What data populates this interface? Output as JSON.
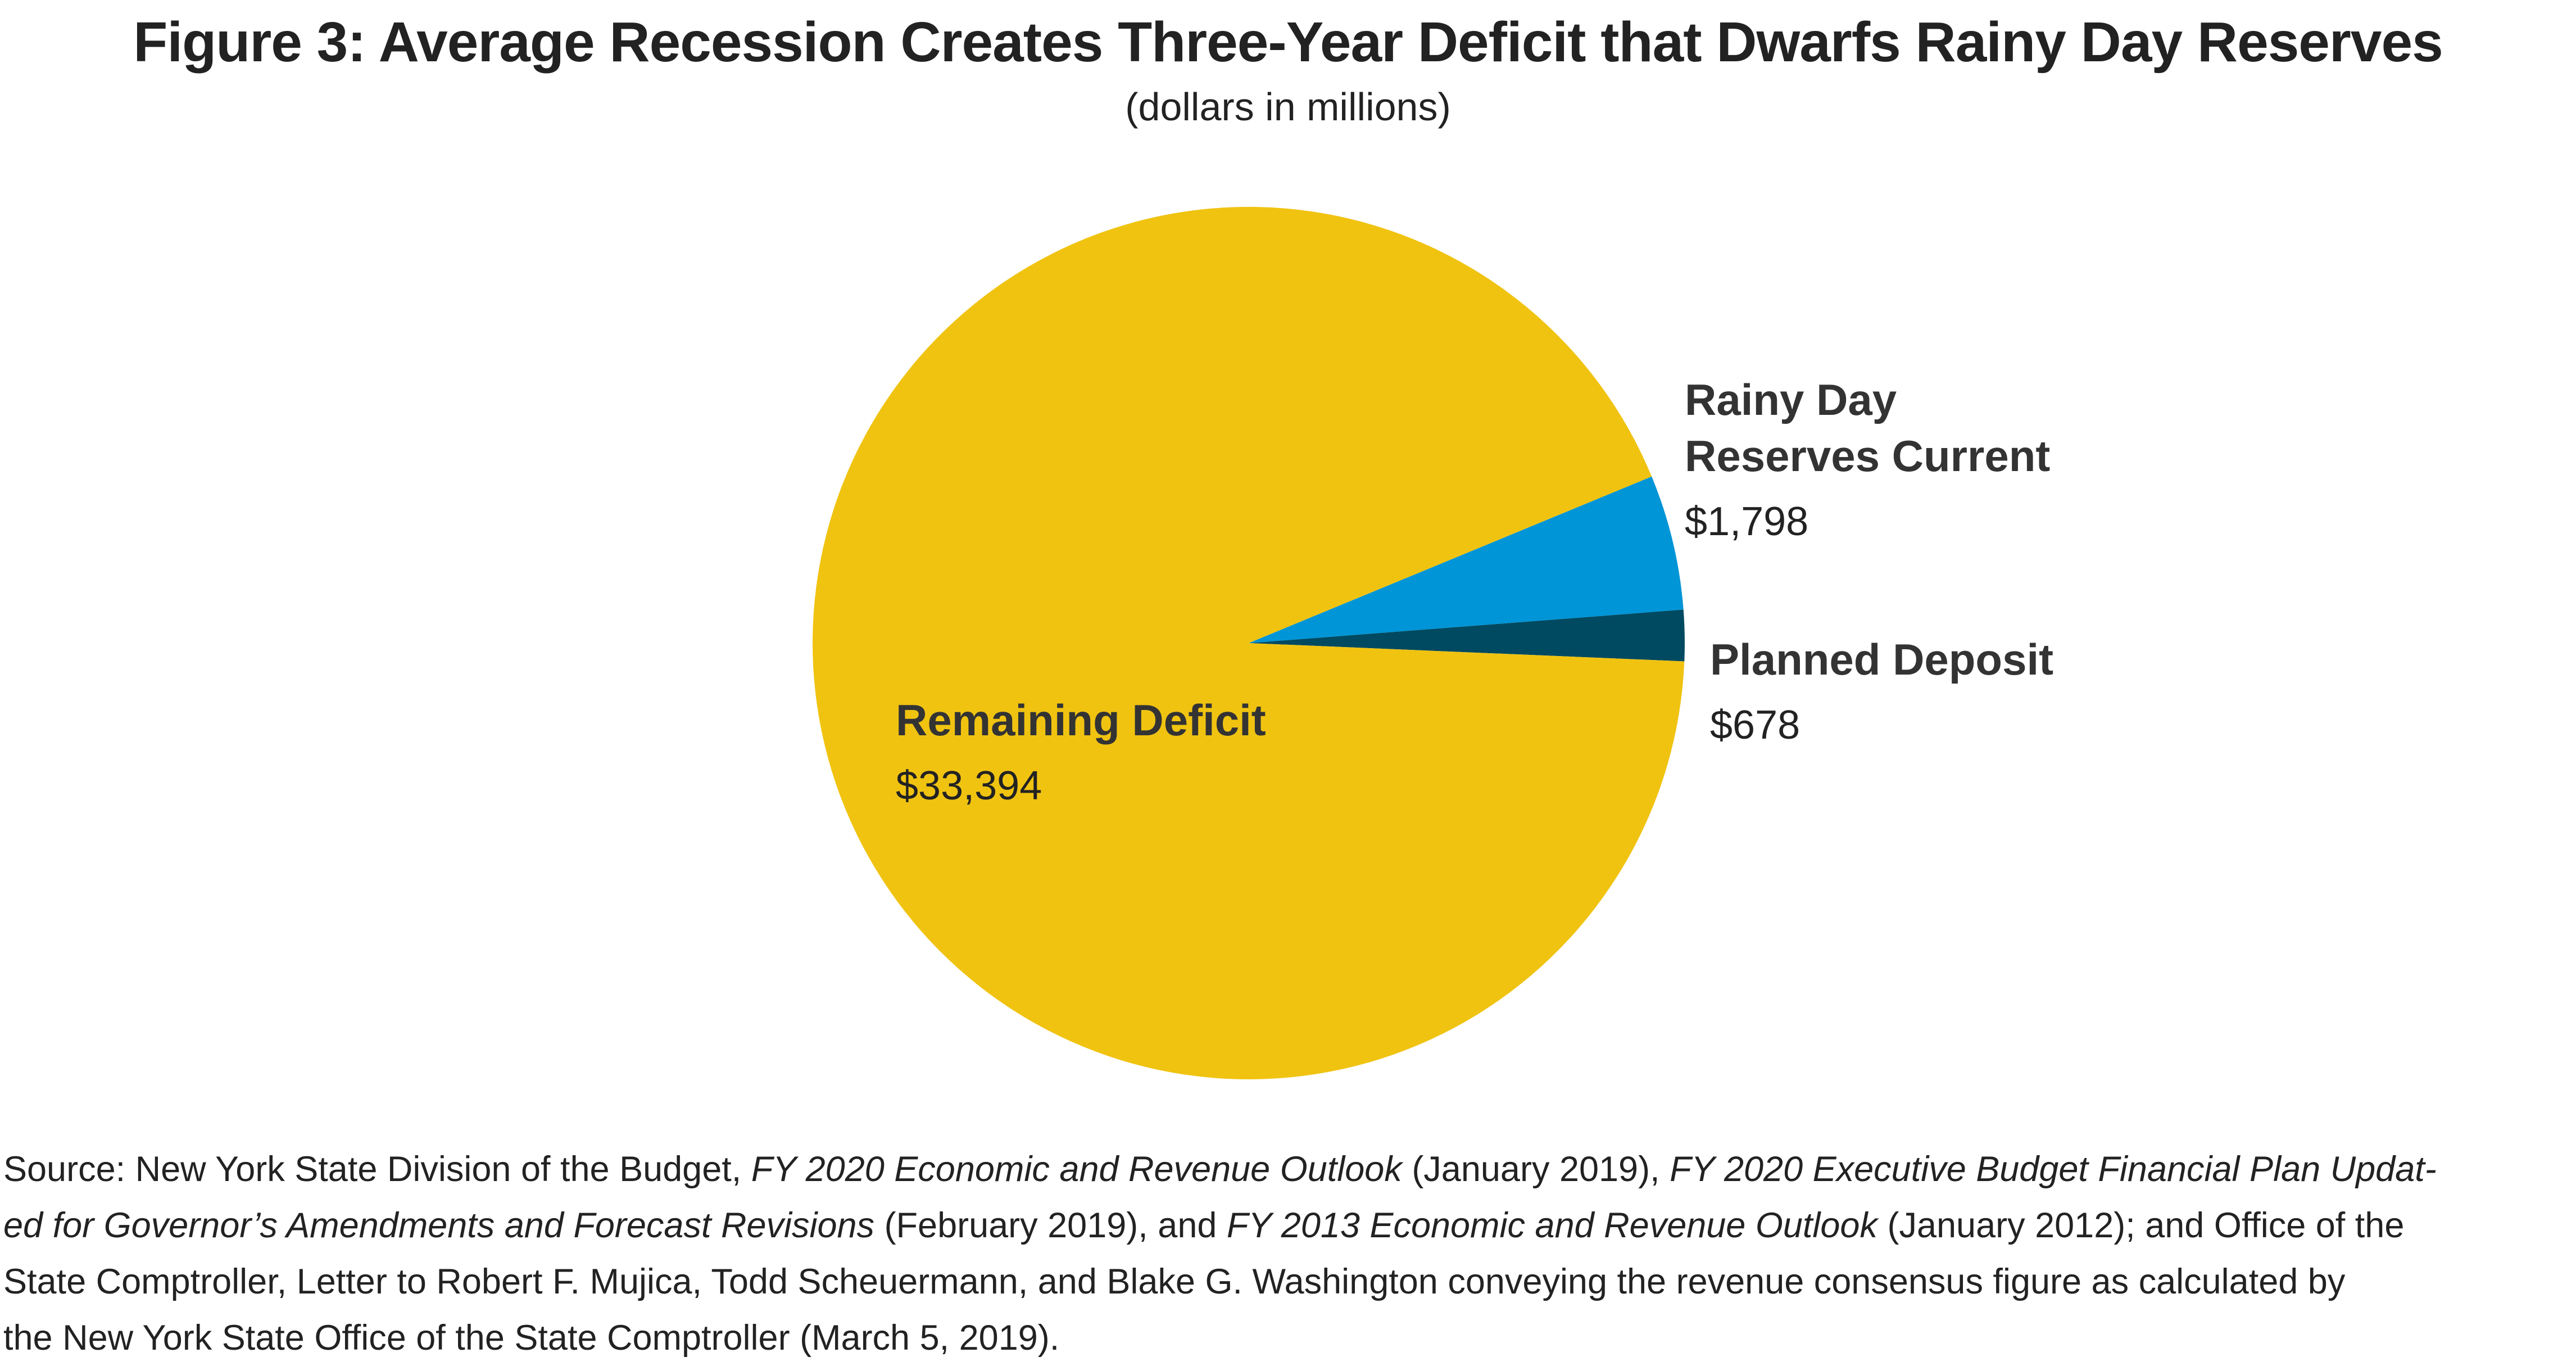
{
  "title": "Figure 3: Average Recession Creates Three-Year Deficit that Dwarfs Rainy Day Reserves",
  "subtitle": "(dollars in millions)",
  "chart_data": {
    "type": "pie",
    "title": "Figure 3: Average Recession Creates Three-Year Deficit that Dwarfs Rainy Day Reserves",
    "subtitle": "(dollars in millions)",
    "slices": [
      {
        "name": "Rainy Day Reserves Current",
        "label_lines": [
          "Rainy Day",
          "Reserves Current"
        ],
        "value": 1798,
        "value_label": "$1,798",
        "color": "#0095D6"
      },
      {
        "name": "Planned Deposit",
        "label_lines": [
          "Planned Deposit"
        ],
        "value": 678,
        "value_label": "$678",
        "color": "#004A61"
      },
      {
        "name": "Remaining Deficit",
        "label_lines": [
          "Remaining Deficit"
        ],
        "value": 33394,
        "value_label": "$33,394",
        "color": "#F0C311"
      }
    ]
  },
  "source": {
    "lines": [
      [
        {
          "text": "Source: New York State Division of the Budget, ",
          "italic": false
        },
        {
          "text": "FY 2020 Economic and Revenue Outlook",
          "italic": true
        },
        {
          "text": " (January 2019), ",
          "italic": false
        },
        {
          "text": "FY 2020 Executive Budget Financial Plan Updat-",
          "italic": true
        }
      ],
      [
        {
          "text": "ed for Governor’s Amendments and Forecast Revisions",
          "italic": true
        },
        {
          "text": " (February 2019), and ",
          "italic": false
        },
        {
          "text": "FY 2013 Economic and Revenue Outlook",
          "italic": true
        },
        {
          "text": " (January 2012); and Office of the",
          "italic": false
        }
      ],
      [
        {
          "text": "State Comptroller, Letter to Robert F. Mujica, Todd Scheuermann, and Blake G. Washington conveying the revenue consensus figure as calculated by",
          "italic": false
        }
      ],
      [
        {
          "text": "the New York State Office of the State Comptroller (March 5, 2019).",
          "italic": false
        }
      ]
    ]
  }
}
